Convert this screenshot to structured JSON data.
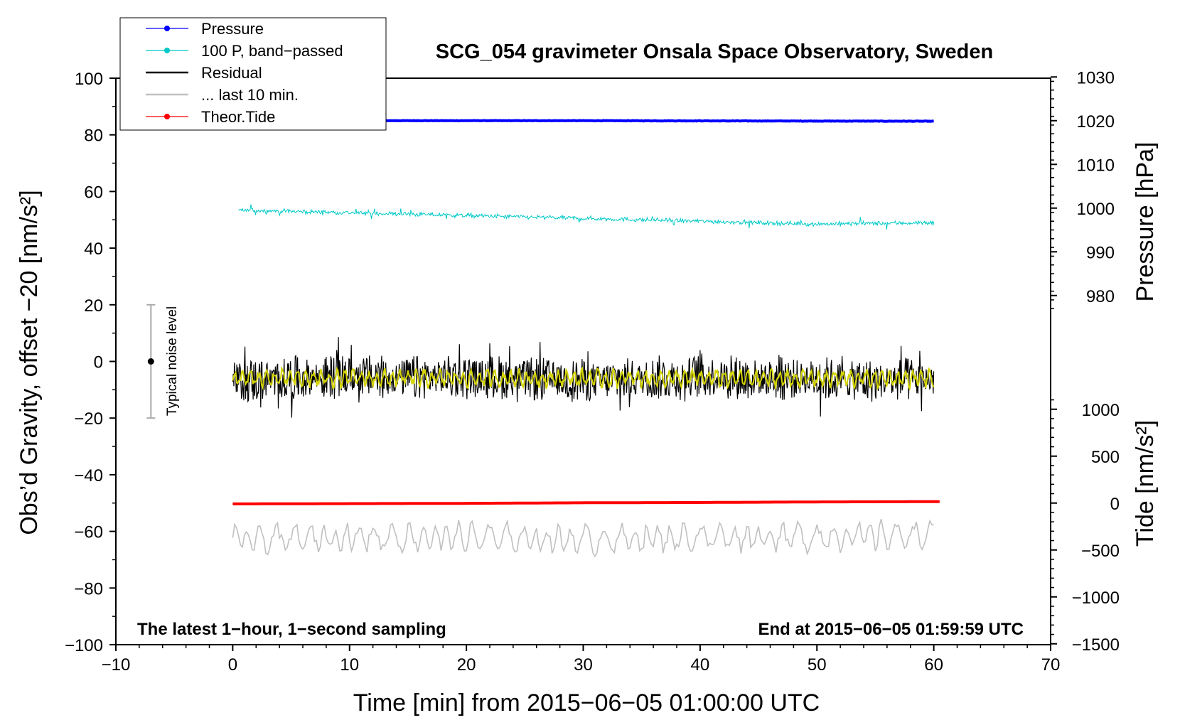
{
  "chart_data": {
    "type": "line",
    "title": "SCG_054 gravimeter Onsala Space Observatory, Sweden",
    "xlabel": "Time [min] from 2015−06−05 01:00:00 UTC",
    "ylabel_left": "Obs’d Gravity, offset −20 [nm/s²]",
    "ylabel_right_pressure": "Pressure [hPa]",
    "ylabel_right_tide": "Tide [nm/s²]",
    "xlim": [
      -10,
      70
    ],
    "ylim": [
      -100,
      100
    ],
    "xticks": [
      -10,
      0,
      10,
      20,
      30,
      40,
      50,
      60,
      70
    ],
    "xtick_labels": [
      "−10",
      "0",
      "10",
      "20",
      "30",
      "40",
      "50",
      "60",
      "70"
    ],
    "yticks": [
      -100,
      -80,
      -60,
      -40,
      -20,
      0,
      20,
      40,
      60,
      80,
      100
    ],
    "ytick_labels": [
      "−100",
      "−80",
      "−60",
      "−40",
      "−20",
      "0",
      "20",
      "40",
      "60",
      "80",
      "100"
    ],
    "pressure_axis": {
      "ticks": [
        980,
        990,
        1000,
        1010,
        1020,
        1030
      ],
      "tick_labels": [
        "980",
        "990",
        "1000",
        "1010",
        "1020",
        "1030"
      ]
    },
    "tide_axis": {
      "ticks": [
        -1500,
        -1000,
        -500,
        0,
        500,
        1000
      ],
      "tick_labels": [
        "−1500",
        "−1000",
        "−500",
        "0",
        "500",
        "1000"
      ]
    },
    "series": [
      {
        "name": "Pressure",
        "color": "#0000ff",
        "x": [
          0,
          20,
          30,
          60
        ],
        "values": [
          85,
          85,
          85,
          84.8
        ]
      },
      {
        "name": "100 P, band−passed",
        "color": "#00c8c8",
        "x": [
          0,
          10,
          20,
          30,
          40,
          50,
          60
        ],
        "values": [
          53.5,
          52.5,
          51.5,
          50.5,
          49.5,
          48.5,
          49
        ]
      },
      {
        "name": "Residual",
        "color": "#000000",
        "x": [
          0,
          5,
          10,
          15,
          20,
          25,
          30,
          35,
          40,
          45,
          50,
          55,
          60
        ],
        "values": [
          -7,
          -6,
          -5,
          -6,
          -5,
          -6,
          -7,
          -6,
          -5,
          -6,
          -6,
          -7,
          -6
        ]
      },
      {
        "name": "... last 10 min.",
        "color": "#c0c0c0",
        "x": [
          0,
          10,
          20,
          30,
          40,
          50,
          60
        ],
        "values": [
          -63,
          -62,
          -62,
          -63,
          -62,
          -62,
          -61
        ]
      },
      {
        "name": "Theor.Tide",
        "color": "#ff0000",
        "x": [
          0,
          10,
          20,
          30,
          40,
          50,
          60
        ],
        "values": [
          -50.3,
          -50.2,
          -50.1,
          -49.9,
          -49.8,
          -49.6,
          -49.5
        ]
      }
    ],
    "legend": {
      "placement": "top-left",
      "items": [
        {
          "label": "Pressure",
          "color": "#0000ff",
          "marker": true
        },
        {
          "label": "100 P, band−passed",
          "color": "#00c8c8",
          "marker": true
        },
        {
          "label": "Residual",
          "color": "#000000",
          "marker": false
        },
        {
          "label": "... last 10 min.",
          "color": "#c0c0c0",
          "marker": false
        },
        {
          "label": "Theor.Tide",
          "color": "#ff0000",
          "marker": true
        }
      ]
    },
    "annotations": {
      "bottom_left": "The latest 1−hour, 1−second sampling",
      "bottom_right": "End at 2015−06−05 01:59:59 UTC",
      "noise_label": "Typical noise level",
      "noise_range": [
        -20,
        20
      ],
      "noise_x": -7
    }
  }
}
